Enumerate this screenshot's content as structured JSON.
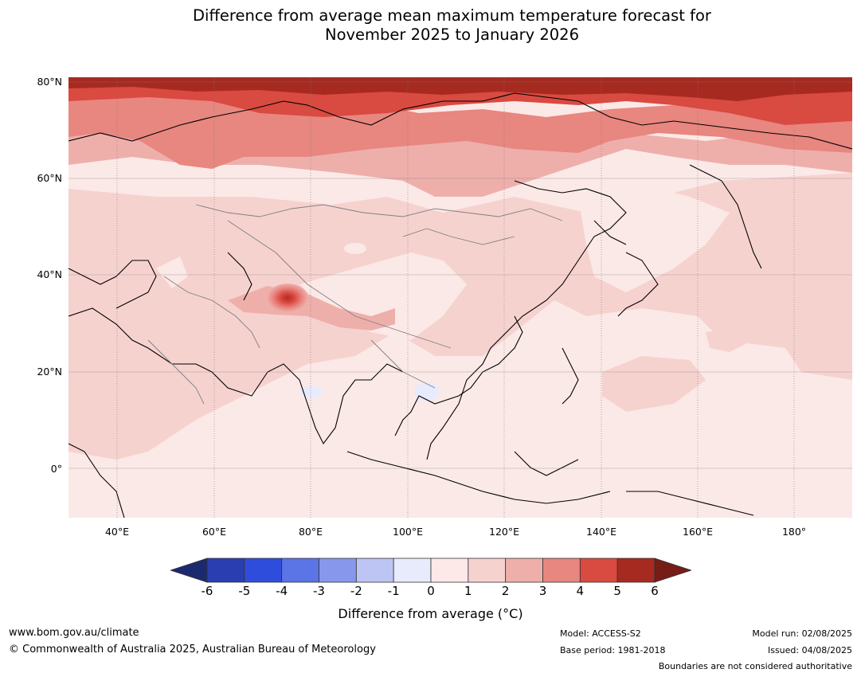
{
  "title": {
    "line1": "Difference from average mean maximum temperature forecast for",
    "line2": "November 2025 to January 2026"
  },
  "map": {
    "region": "Asia",
    "projection": "equirectangular",
    "lon_range": [
      30,
      192
    ],
    "lat_range": [
      -10,
      81
    ],
    "gridlines": true,
    "lat_labels": [
      "80°N",
      "60°N",
      "40°N",
      "20°N",
      "0°"
    ],
    "lon_labels": [
      "40°E",
      "60°E",
      "80°E",
      "100°E",
      "120°E",
      "140°E",
      "160°E",
      "180°"
    ]
  },
  "colorbar": {
    "ticks": [
      "-6",
      "-5",
      "-4",
      "-3",
      "-2",
      "-1",
      "0",
      "1",
      "2",
      "3",
      "4",
      "5",
      "6"
    ],
    "label": "Difference from average (°C)",
    "colors": [
      "#1b2a6e",
      "#2a3eb2",
      "#2f4ddc",
      "#5b74e6",
      "#8798ec",
      "#bcc5f4",
      "#e8ebfb",
      "#fde9e8",
      "#f6d2cf",
      "#eeafab",
      "#e88680",
      "#d94a40",
      "#a72a21",
      "#761d17"
    ]
  },
  "footer": {
    "website": "www.bom.gov.au/climate",
    "copyright": "© Commonwealth of Australia 2025, Australian Bureau of Meteorology",
    "model": "Model: ACCESS-S2",
    "base_period": "Base period: 1981-2018",
    "model_run": "Model run: 02/08/2025",
    "issued": "Issued: 04/08/2025",
    "disclaimer": "Boundaries are not considered authoritative"
  }
}
